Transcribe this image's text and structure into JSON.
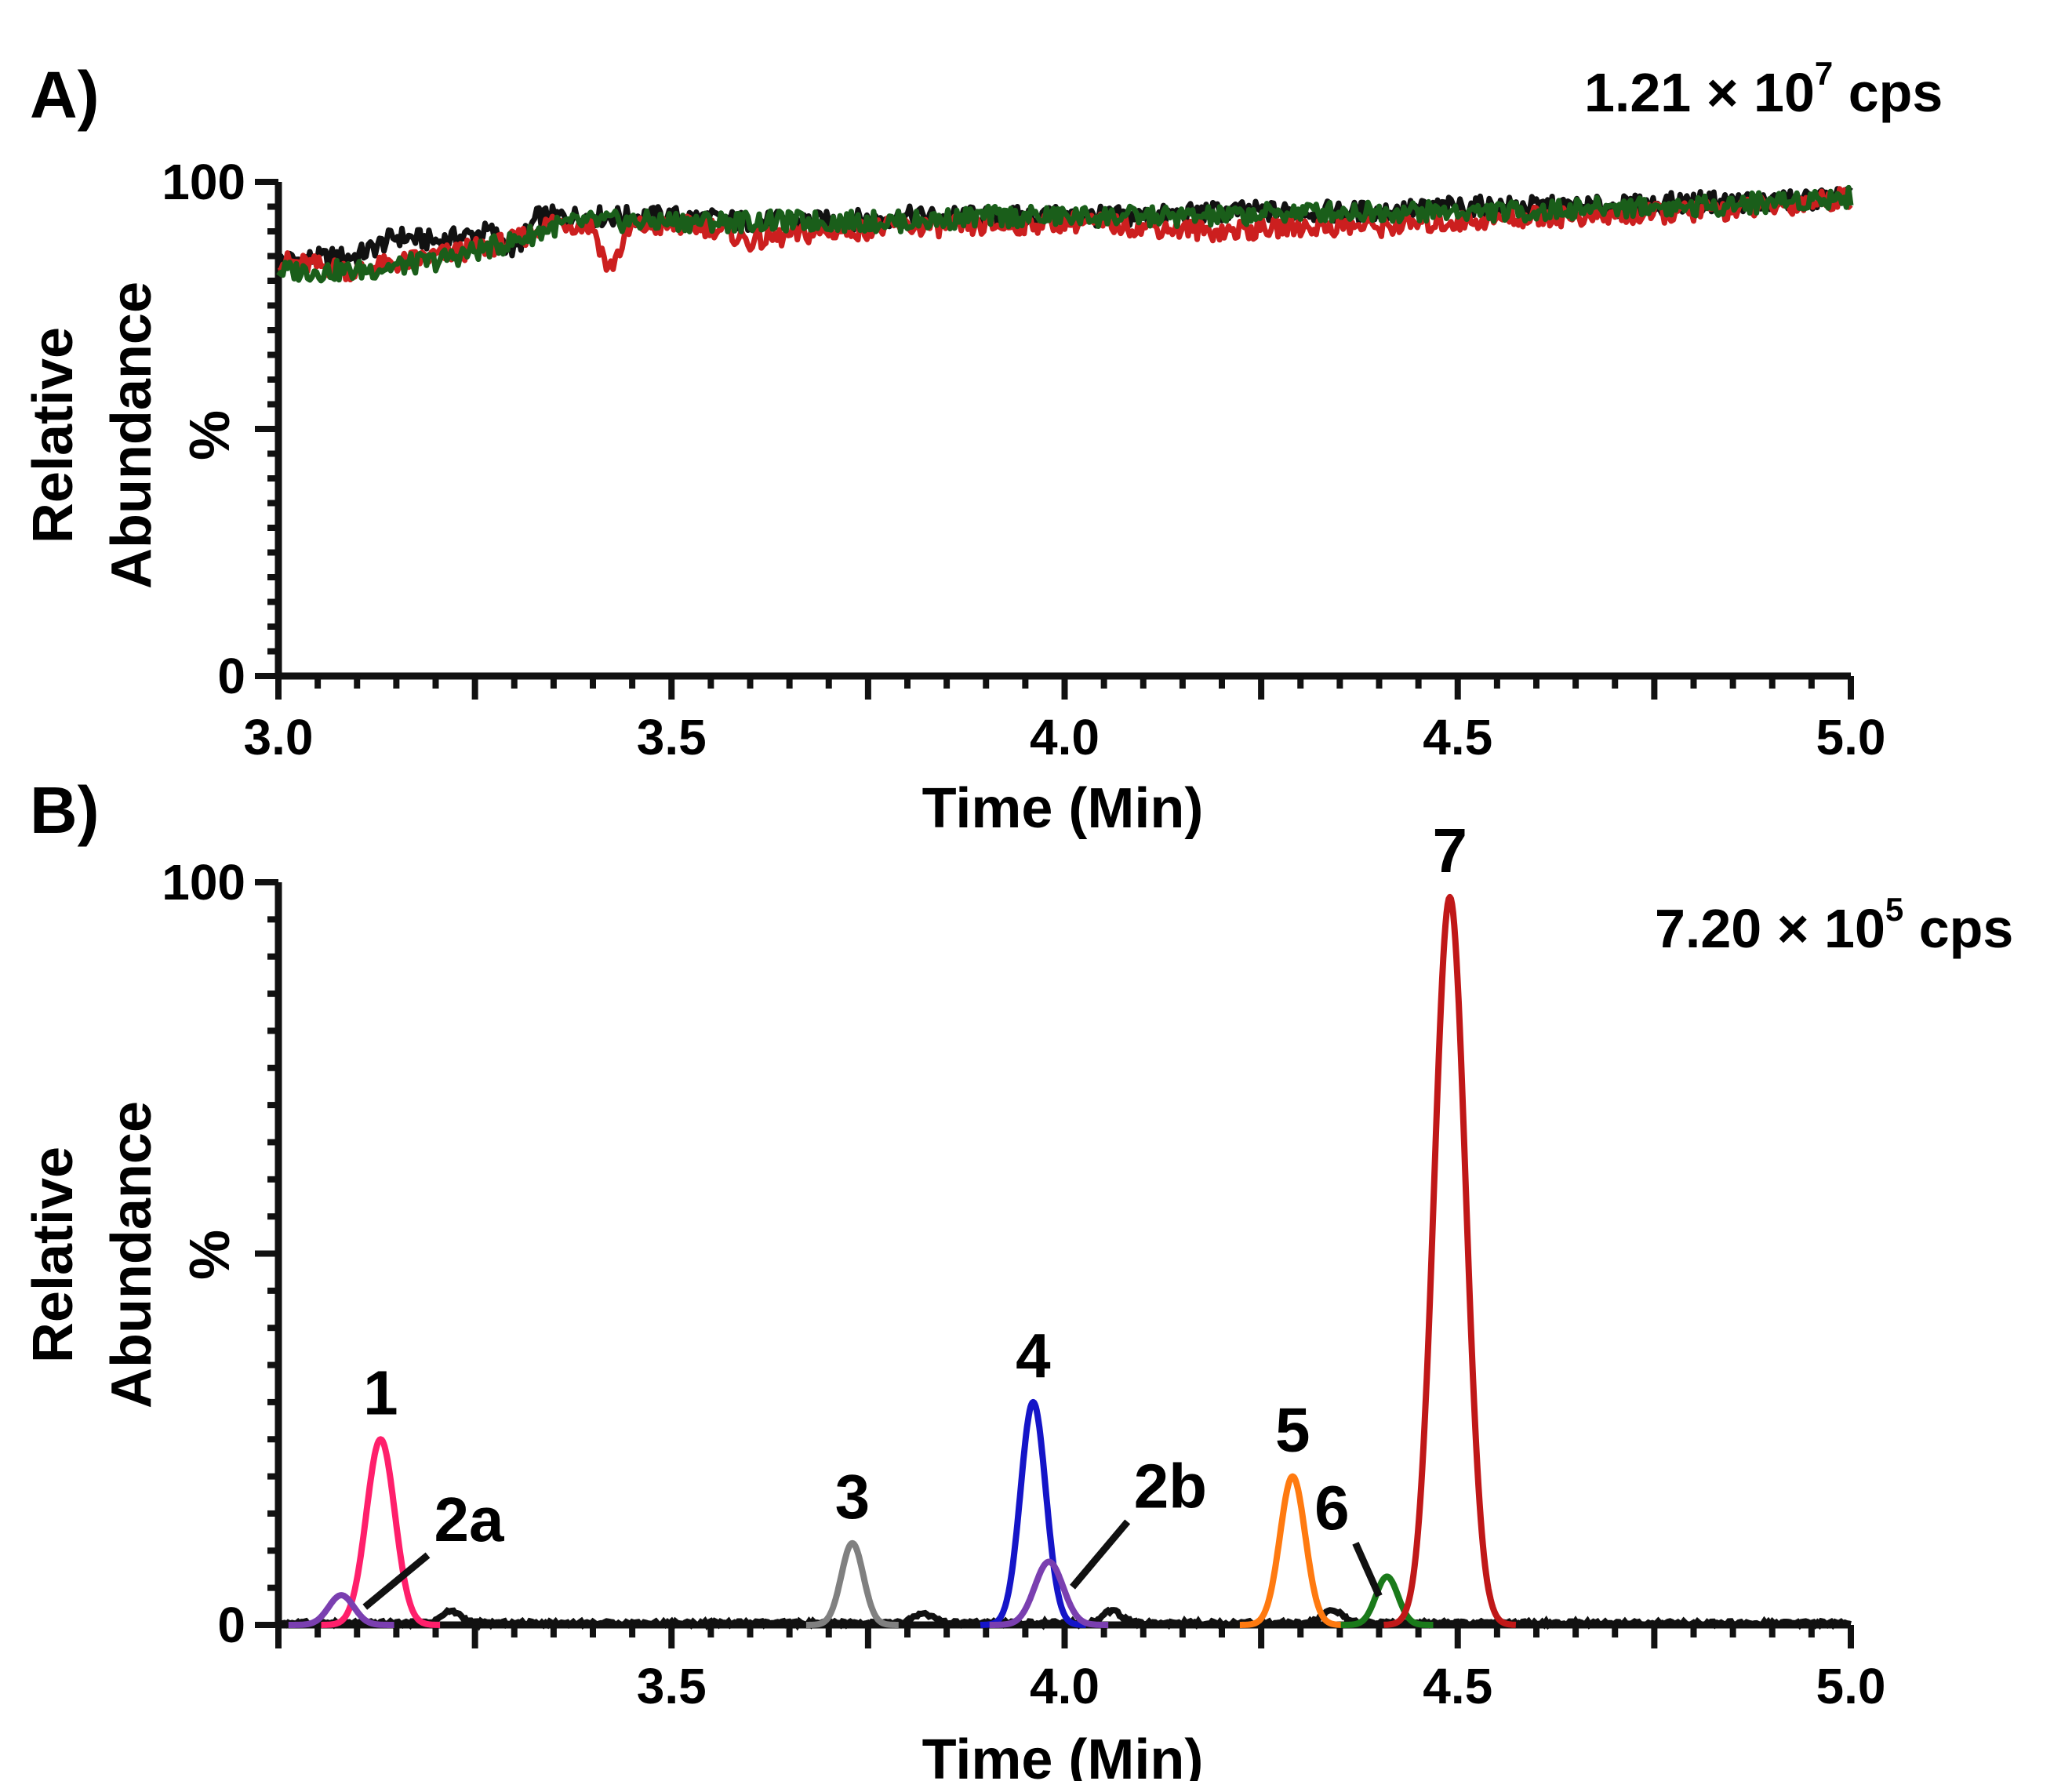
{
  "chart_data": [
    {
      "panel": "A)",
      "type": "line",
      "xlabel": "Time (Min)",
      "ylabel_line1": "Relative",
      "ylabel_line2": "Abundance",
      "ylabel_unit": "%",
      "xlim": [
        3.0,
        5.0
      ],
      "ylim": [
        0,
        100
      ],
      "x_ticks": [
        "3.0",
        "3.5",
        "4.0",
        "4.5",
        "5.0"
      ],
      "y_ticks": [
        "100",
        "0"
      ],
      "intensity_mantissa": "1.21 × 10",
      "intensity_exponent": "7",
      "intensity_unit": " cps",
      "series": [
        {
          "name": "black trace",
          "color": "#111111",
          "points": [
            [
              3.0,
              84
            ],
            [
              3.1,
              85
            ],
            [
              3.15,
              89
            ],
            [
              3.2,
              88
            ],
            [
              3.27,
              90
            ],
            [
              3.3,
              86
            ],
            [
              3.33,
              93
            ],
            [
              3.4,
              93
            ],
            [
              3.5,
              93
            ],
            [
              3.6,
              92
            ],
            [
              3.7,
              92
            ],
            [
              3.8,
              93
            ],
            [
              3.9,
              93
            ],
            [
              4.0,
              93
            ],
            [
              4.1,
              93
            ],
            [
              4.2,
              94
            ],
            [
              4.3,
              94
            ],
            [
              4.4,
              94
            ],
            [
              4.5,
              95
            ],
            [
              4.6,
              95
            ],
            [
              4.7,
              95
            ],
            [
              4.8,
              96
            ],
            [
              4.9,
              96
            ],
            [
              5.0,
              97
            ]
          ]
        },
        {
          "name": "red trace",
          "color": "#cc1f1f",
          "points": [
            [
              3.0,
              84
            ],
            [
              3.05,
              83
            ],
            [
              3.1,
              82
            ],
            [
              3.2,
              85
            ],
            [
              3.3,
              88
            ],
            [
              3.35,
              92
            ],
            [
              3.4,
              91
            ],
            [
              3.42,
              82
            ],
            [
              3.45,
              91
            ],
            [
              3.55,
              91
            ],
            [
              3.6,
              88
            ],
            [
              3.7,
              90
            ],
            [
              3.8,
              91
            ],
            [
              3.9,
              91
            ],
            [
              4.0,
              92
            ],
            [
              4.1,
              91
            ],
            [
              4.2,
              90
            ],
            [
              4.3,
              91
            ],
            [
              4.4,
              91
            ],
            [
              4.5,
              92
            ],
            [
              4.6,
              93
            ],
            [
              4.7,
              93
            ],
            [
              4.8,
              94
            ],
            [
              4.9,
              95
            ],
            [
              5.0,
              97
            ]
          ]
        },
        {
          "name": "green trace",
          "color": "#1a5e1a",
          "points": [
            [
              3.0,
              82
            ],
            [
              3.1,
              82
            ],
            [
              3.2,
              84
            ],
            [
              3.3,
              88
            ],
            [
              3.35,
              91
            ],
            [
              3.4,
              92
            ],
            [
              3.5,
              92
            ],
            [
              3.6,
              92
            ],
            [
              3.7,
              92
            ],
            [
              3.8,
              92
            ],
            [
              3.9,
              93
            ],
            [
              4.0,
              93
            ],
            [
              4.1,
              93
            ],
            [
              4.2,
              93
            ],
            [
              4.3,
              94
            ],
            [
              4.4,
              94
            ],
            [
              4.5,
              94
            ],
            [
              4.6,
              94
            ],
            [
              4.7,
              95
            ],
            [
              4.8,
              95
            ],
            [
              4.9,
              96
            ],
            [
              5.0,
              97
            ]
          ]
        }
      ]
    },
    {
      "panel": "B)",
      "type": "line",
      "xlabel": "Time (Min)",
      "ylabel_line1": "Relative",
      "ylabel_line2": "Abundance",
      "ylabel_unit": "%",
      "xlim": [
        3.0,
        5.0
      ],
      "ylim": [
        0,
        100
      ],
      "x_ticks": [
        "3.5",
        "4.0",
        "4.5",
        "5.0"
      ],
      "y_ticks": [
        "100",
        "0"
      ],
      "intensity_mantissa": "7.20 × 10",
      "intensity_exponent": "5",
      "intensity_unit": " cps",
      "peaks": [
        {
          "label": "1",
          "center": 3.13,
          "height": 25,
          "sigma": 0.018,
          "color": "#ff1f6b"
        },
        {
          "label": "2a",
          "center": 3.08,
          "height": 4,
          "sigma": 0.016,
          "color": "#7a3fb0"
        },
        {
          "label": "3",
          "center": 3.73,
          "height": 11,
          "sigma": 0.014,
          "color": "#808080"
        },
        {
          "label": "4",
          "center": 3.96,
          "height": 30,
          "sigma": 0.016,
          "color": "#1515c8"
        },
        {
          "label": "2b",
          "center": 3.98,
          "height": 8.5,
          "sigma": 0.018,
          "color": "#7a3fb0"
        },
        {
          "label": "5",
          "center": 4.29,
          "height": 20,
          "sigma": 0.016,
          "color": "#ff7a10"
        },
        {
          "label": "6",
          "center": 4.41,
          "height": 6.5,
          "sigma": 0.014,
          "color": "#1a7a1a"
        },
        {
          "label": "7",
          "center": 4.49,
          "height": 98,
          "sigma": 0.02,
          "color": "#c01818"
        }
      ],
      "baseline_bumps": [
        {
          "center": 3.22,
          "height": 1.6,
          "sigma": 0.012
        },
        {
          "center": 3.82,
          "height": 1.3,
          "sigma": 0.012
        },
        {
          "center": 4.06,
          "height": 1.6,
          "sigma": 0.012
        },
        {
          "center": 4.34,
          "height": 1.8,
          "sigma": 0.012
        }
      ]
    }
  ]
}
